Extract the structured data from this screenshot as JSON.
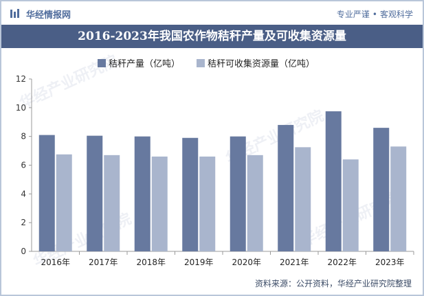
{
  "header": {
    "brand": "华经情报网",
    "tagline_left": "专业严谨",
    "tagline_sep": "•",
    "tagline_right": "客观科学"
  },
  "title": "2016-2023年我国农作物秸秆产量及可收集资源量",
  "source": "资料来源：公开资料，华经产业研究院整理",
  "watermark": "华经产业研究院",
  "colors": {
    "series1": "#67799f",
    "series2": "#a9b5cd",
    "title_bg": "#4a5e86",
    "brand": "#4f6c9c"
  },
  "chart_data": {
    "type": "bar",
    "categories": [
      "2016年",
      "2017年",
      "2018年",
      "2019年",
      "2020年",
      "2021年",
      "2022年",
      "2023年"
    ],
    "series": [
      {
        "name": "秸秆产量（亿吨）",
        "values": [
          8.1,
          8.05,
          8.0,
          7.9,
          8.0,
          8.8,
          9.75,
          8.6
        ]
      },
      {
        "name": "秸秆可收集资源量（亿吨）",
        "values": [
          6.75,
          6.7,
          6.6,
          6.6,
          6.7,
          7.25,
          6.4,
          7.3
        ]
      }
    ],
    "ylim": [
      0,
      12
    ],
    "yticks": [
      0,
      2,
      4,
      6,
      8,
      10,
      12
    ],
    "legend": "top-left",
    "grid": false
  }
}
